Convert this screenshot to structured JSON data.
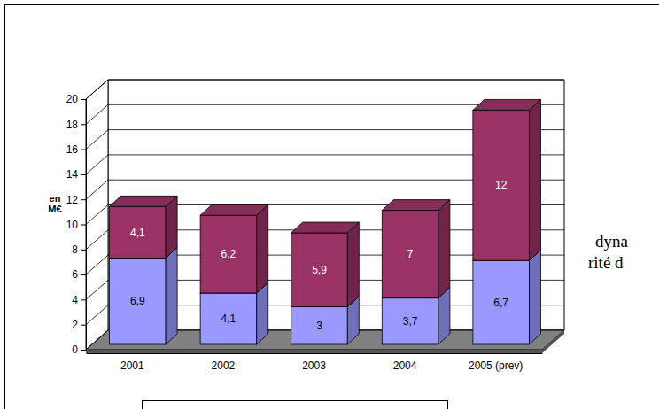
{
  "chart_data": {
    "type": "bar",
    "stacked": true,
    "data_labels": true,
    "grid": true,
    "y_label": "en M€",
    "categories": [
      "2001",
      "2002",
      "2003",
      "2004",
      "2005 (prev)"
    ],
    "series": [
      {
        "color": "#9999ff",
        "values": [
          6.9,
          4.1,
          3,
          3.7,
          6.7
        ],
        "value_labels": [
          "6,9",
          "4,1",
          "3",
          "3,7",
          "6,7"
        ]
      },
      {
        "color": "#993366",
        "values": [
          4.1,
          6.2,
          5.9,
          7,
          12
        ],
        "value_labels": [
          "4,1",
          "6,2",
          "5,9",
          "7",
          "12"
        ]
      }
    ],
    "ylim": [
      0,
      20
    ],
    "yticks": [
      0,
      2,
      4,
      6,
      8,
      10,
      12,
      14,
      16,
      18,
      20
    ],
    "annotations": [
      "dyna",
      "rité d"
    ]
  }
}
